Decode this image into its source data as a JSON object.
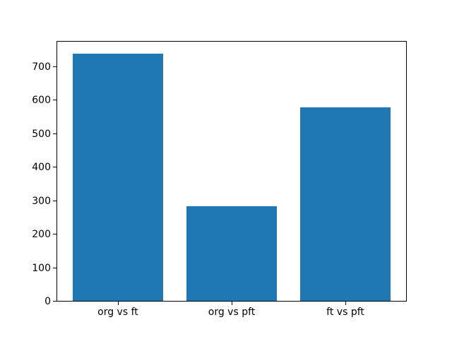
{
  "figure": {
    "background": "#ffffff"
  },
  "chart_data": {
    "type": "bar",
    "categories": [
      "org vs ft",
      "org vs pft",
      "ft vs pft"
    ],
    "values": [
      740,
      284,
      580
    ],
    "title": "",
    "xlabel": "",
    "ylabel": "",
    "ylim": [
      0,
      777
    ],
    "yticks": [
      0,
      100,
      200,
      300,
      400,
      500,
      600,
      700
    ],
    "bar_color": "#1f77b4",
    "bar_width_fraction": 0.8,
    "grid": false,
    "legend": null
  }
}
